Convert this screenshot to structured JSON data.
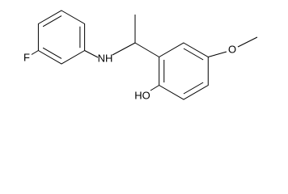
{
  "atoms": {
    "labels": [
      "F",
      "NH",
      "O",
      "HO"
    ]
  }
}
